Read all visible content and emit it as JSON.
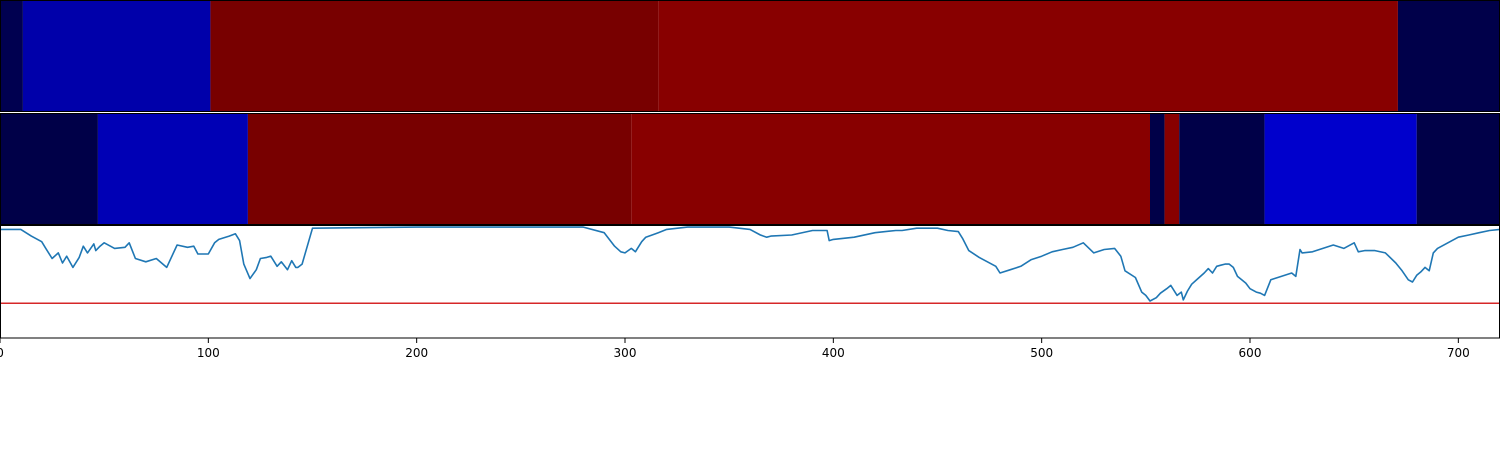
{
  "chart_data": [
    {
      "type": "heatmap",
      "panel": "top-strip",
      "xlim": [
        0,
        720
      ],
      "segments": [
        {
          "x0": 0,
          "x1": 11,
          "color": "#000050"
        },
        {
          "x0": 11,
          "x1": 101,
          "color": "#0000aa"
        },
        {
          "x0": 101,
          "x1": 316,
          "color": "#780000"
        },
        {
          "x0": 316,
          "x1": 671,
          "color": "#880000"
        },
        {
          "x0": 671,
          "x1": 720,
          "color": "#00004a"
        }
      ]
    },
    {
      "type": "heatmap",
      "panel": "middle-strip",
      "xlim": [
        0,
        720
      ],
      "segments": [
        {
          "x0": 0,
          "x1": 47,
          "color": "#000048"
        },
        {
          "x0": 47,
          "x1": 119,
          "color": "#0000b5"
        },
        {
          "x0": 119,
          "x1": 303,
          "color": "#780000"
        },
        {
          "x0": 303,
          "x1": 552,
          "color": "#880000"
        },
        {
          "x0": 552,
          "x1": 559,
          "color": "#000048"
        },
        {
          "x0": 559,
          "x1": 566,
          "color": "#880000"
        },
        {
          "x0": 566,
          "x1": 607,
          "color": "#000048"
        },
        {
          "x0": 607,
          "x1": 680,
          "color": "#0000cc"
        },
        {
          "x0": 680,
          "x1": 720,
          "color": "#000048"
        }
      ]
    },
    {
      "type": "line",
      "panel": "bottom-plot",
      "xlim": [
        0,
        720
      ],
      "ylim": [
        0,
        1
      ],
      "xticks": [
        "0",
        "100",
        "200",
        "300",
        "400",
        "500",
        "600",
        "700"
      ],
      "line_color": "#1f77b4",
      "threshold": 0.31,
      "threshold_color": "#d62728",
      "series": [
        {
          "x": [
            0,
            5,
            10,
            15,
            20,
            22,
            25,
            28,
            30,
            32,
            35,
            38,
            40,
            42,
            45,
            46,
            48,
            50,
            55,
            60,
            62,
            65,
            70,
            75,
            80,
            85,
            90,
            93,
            95,
            100,
            103,
            105,
            110,
            113,
            115,
            117,
            120,
            123,
            125,
            128,
            130,
            133,
            135,
            138,
            140,
            142,
            143,
            145,
            150,
            200,
            250,
            280,
            290,
            295,
            298,
            300,
            303,
            305,
            308,
            310,
            313,
            316,
            320,
            330,
            340,
            350,
            360,
            365,
            368,
            370,
            380,
            390,
            397,
            398,
            400,
            410,
            420,
            430,
            433,
            440,
            450,
            455,
            460,
            462,
            465,
            470,
            478,
            480,
            485,
            490,
            495,
            500,
            505,
            510,
            515,
            520,
            525,
            530,
            535,
            538,
            540,
            545,
            548,
            550,
            552,
            555,
            557,
            560,
            562,
            565,
            567,
            568,
            570,
            572,
            575,
            578,
            580,
            582,
            584,
            586,
            588,
            590,
            592,
            594,
            596,
            598,
            600,
            603,
            605,
            607,
            610,
            615,
            620,
            622,
            624,
            625,
            630,
            635,
            640,
            645,
            650,
            652,
            655,
            660,
            665,
            670,
            673,
            676,
            678,
            680,
            682,
            684,
            686,
            688,
            690,
            695,
            700,
            705,
            710,
            715,
            720
          ],
          "y": [
            0.97,
            0.97,
            0.97,
            0.91,
            0.86,
            0.8,
            0.71,
            0.76,
            0.67,
            0.73,
            0.63,
            0.72,
            0.82,
            0.76,
            0.84,
            0.78,
            0.82,
            0.85,
            0.8,
            0.81,
            0.85,
            0.71,
            0.68,
            0.71,
            0.63,
            0.83,
            0.81,
            0.82,
            0.75,
            0.75,
            0.85,
            0.88,
            0.91,
            0.93,
            0.87,
            0.66,
            0.53,
            0.61,
            0.71,
            0.72,
            0.73,
            0.64,
            0.68,
            0.61,
            0.69,
            0.63,
            0.63,
            0.66,
            0.98,
            0.99,
            0.99,
            0.99,
            0.94,
            0.82,
            0.77,
            0.76,
            0.8,
            0.77,
            0.86,
            0.9,
            0.92,
            0.94,
            0.97,
            0.99,
            0.99,
            0.99,
            0.97,
            0.92,
            0.9,
            0.91,
            0.92,
            0.96,
            0.96,
            0.87,
            0.88,
            0.9,
            0.94,
            0.96,
            0.96,
            0.98,
            0.98,
            0.96,
            0.95,
            0.89,
            0.78,
            0.72,
            0.64,
            0.58,
            0.61,
            0.64,
            0.7,
            0.73,
            0.77,
            0.79,
            0.81,
            0.85,
            0.76,
            0.79,
            0.8,
            0.73,
            0.6,
            0.54,
            0.41,
            0.38,
            0.33,
            0.36,
            0.4,
            0.44,
            0.47,
            0.38,
            0.41,
            0.34,
            0.42,
            0.48,
            0.53,
            0.58,
            0.62,
            0.58,
            0.64,
            0.65,
            0.66,
            0.66,
            0.63,
            0.55,
            0.52,
            0.49,
            0.44,
            0.41,
            0.4,
            0.38,
            0.52,
            0.55,
            0.58,
            0.55,
            0.79,
            0.76,
            0.77,
            0.8,
            0.83,
            0.8,
            0.85,
            0.77,
            0.78,
            0.78,
            0.76,
            0.67,
            0.6,
            0.52,
            0.5,
            0.56,
            0.59,
            0.63,
            0.6,
            0.76,
            0.8,
            0.85,
            0.9,
            0.92,
            0.94,
            0.96,
            0.97
          ]
        }
      ]
    }
  ]
}
